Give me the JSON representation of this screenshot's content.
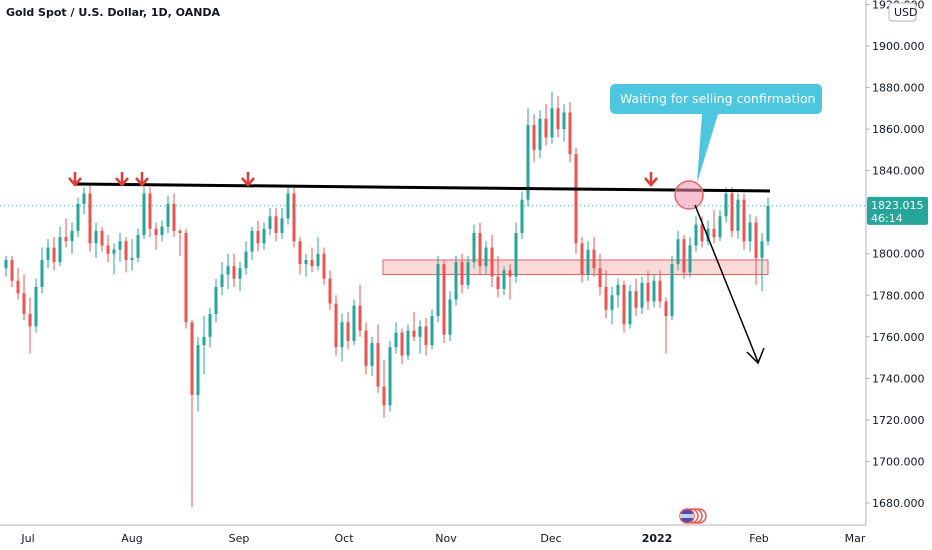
{
  "chart_data": {
    "type": "candlestick",
    "title": "Gold Spot / U.S. Dollar, 1D, OANDA",
    "currency_label": "USD",
    "ylim": [
      1670,
      1921
    ],
    "y_ticks": [
      {
        "value": 1680,
        "label": "1680.000"
      },
      {
        "value": 1700,
        "label": "1700.000"
      },
      {
        "value": 1720,
        "label": "1720.000"
      },
      {
        "value": 1740,
        "label": "1740.000"
      },
      {
        "value": 1760,
        "label": "1760.000"
      },
      {
        "value": 1780,
        "label": "1780.000"
      },
      {
        "value": 1800,
        "label": "1800.000"
      },
      {
        "value": 1820,
        "label": "1820.000"
      },
      {
        "value": 1840,
        "label": "1840.000"
      },
      {
        "value": 1860,
        "label": "1860.000"
      },
      {
        "value": 1880,
        "label": "1880.000"
      },
      {
        "value": 1900,
        "label": "1900.000"
      },
      {
        "value": 1920,
        "label": "1920.000"
      }
    ],
    "x_ticks": [
      {
        "label": "Jul",
        "bold": false
      },
      {
        "label": "Aug",
        "bold": false
      },
      {
        "label": "Sep",
        "bold": false
      },
      {
        "label": "Oct",
        "bold": false
      },
      {
        "label": "Nov",
        "bold": false
      },
      {
        "label": "Dec",
        "bold": false
      },
      {
        "label": "2022",
        "bold": true
      },
      {
        "label": "Feb",
        "bold": false
      },
      {
        "label": "Mar",
        "bold": false
      }
    ],
    "last_price": {
      "value": 1823.015,
      "label": "1823.015",
      "countdown": "46:14",
      "color": "#26a69a"
    },
    "colors": {
      "up": "#26a69a",
      "down": "#ef5350",
      "arrow_marker": "#e53935",
      "callout": "#4dc6e0"
    },
    "candles": [
      [
        1793,
        1799,
        1789,
        1797
      ],
      [
        1797,
        1799,
        1784,
        1787
      ],
      [
        1787,
        1793,
        1778,
        1781
      ],
      [
        1781,
        1790,
        1768,
        1771
      ],
      [
        1771,
        1779,
        1752,
        1765
      ],
      [
        1765,
        1788,
        1762,
        1784
      ],
      [
        1784,
        1803,
        1781,
        1797
      ],
      [
        1797,
        1807,
        1793,
        1803
      ],
      [
        1803,
        1808,
        1792,
        1796
      ],
      [
        1796,
        1813,
        1794,
        1808
      ],
      [
        1808,
        1817,
        1803,
        1806
      ],
      [
        1806,
        1815,
        1800,
        1811
      ],
      [
        1811,
        1827,
        1808,
        1824
      ],
      [
        1824,
        1832,
        1819,
        1829
      ],
      [
        1829,
        1833,
        1801,
        1805
      ],
      [
        1805,
        1815,
        1798,
        1811
      ],
      [
        1811,
        1813,
        1801,
        1804
      ],
      [
        1804,
        1809,
        1796,
        1800
      ],
      [
        1800,
        1805,
        1790,
        1802
      ],
      [
        1802,
        1810,
        1796,
        1806
      ],
      [
        1806,
        1808,
        1791,
        1797
      ],
      [
        1797,
        1807,
        1792,
        1798
      ],
      [
        1798,
        1812,
        1796,
        1809
      ],
      [
        1809,
        1832,
        1807,
        1829
      ],
      [
        1829,
        1832,
        1808,
        1812
      ],
      [
        1812,
        1815,
        1802,
        1809
      ],
      [
        1809,
        1816,
        1806,
        1813
      ],
      [
        1813,
        1828,
        1810,
        1824
      ],
      [
        1824,
        1829,
        1808,
        1811
      ],
      [
        1811,
        1812,
        1799,
        1810
      ],
      [
        1810,
        1812,
        1764,
        1767
      ],
      [
        1767,
        1768,
        1678,
        1732
      ],
      [
        1732,
        1760,
        1724,
        1756
      ],
      [
        1756,
        1770,
        1742,
        1760
      ],
      [
        1760,
        1774,
        1755,
        1771
      ],
      [
        1771,
        1788,
        1767,
        1784
      ],
      [
        1784,
        1796,
        1780,
        1790
      ],
      [
        1790,
        1800,
        1783,
        1794
      ],
      [
        1794,
        1800,
        1784,
        1788
      ],
      [
        1788,
        1796,
        1782,
        1793
      ],
      [
        1793,
        1806,
        1790,
        1801
      ],
      [
        1801,
        1813,
        1797,
        1811
      ],
      [
        1811,
        1816,
        1801,
        1805
      ],
      [
        1805,
        1815,
        1802,
        1812
      ],
      [
        1812,
        1822,
        1809,
        1818
      ],
      [
        1818,
        1822,
        1806,
        1810
      ],
      [
        1810,
        1822,
        1807,
        1817
      ],
      [
        1817,
        1832,
        1814,
        1829
      ],
      [
        1829,
        1832,
        1803,
        1806
      ],
      [
        1806,
        1808,
        1790,
        1795
      ],
      [
        1795,
        1800,
        1789,
        1797
      ],
      [
        1797,
        1803,
        1791,
        1794
      ],
      [
        1794,
        1808,
        1792,
        1800
      ],
      [
        1800,
        1803,
        1785,
        1788
      ],
      [
        1788,
        1792,
        1773,
        1776
      ],
      [
        1776,
        1780,
        1751,
        1755
      ],
      [
        1755,
        1771,
        1748,
        1767
      ],
      [
        1767,
        1772,
        1754,
        1758
      ],
      [
        1758,
        1778,
        1756,
        1775
      ],
      [
        1775,
        1785,
        1760,
        1763
      ],
      [
        1763,
        1767,
        1742,
        1746
      ],
      [
        1746,
        1760,
        1741,
        1757
      ],
      [
        1757,
        1766,
        1733,
        1736
      ],
      [
        1736,
        1749,
        1721,
        1727
      ],
      [
        1727,
        1758,
        1724,
        1755
      ],
      [
        1755,
        1767,
        1752,
        1762
      ],
      [
        1762,
        1764,
        1747,
        1751
      ],
      [
        1751,
        1766,
        1749,
        1763
      ],
      [
        1763,
        1772,
        1758,
        1760
      ],
      [
        1760,
        1768,
        1752,
        1765
      ],
      [
        1765,
        1769,
        1751,
        1756
      ],
      [
        1756,
        1773,
        1754,
        1770
      ],
      [
        1770,
        1799,
        1767,
        1795
      ],
      [
        1795,
        1797,
        1757,
        1761
      ],
      [
        1761,
        1782,
        1758,
        1778
      ],
      [
        1778,
        1799,
        1775,
        1796
      ],
      [
        1796,
        1800,
        1781,
        1785
      ],
      [
        1785,
        1799,
        1783,
        1796
      ],
      [
        1796,
        1814,
        1793,
        1810
      ],
      [
        1810,
        1815,
        1790,
        1794
      ],
      [
        1794,
        1806,
        1790,
        1803
      ],
      [
        1803,
        1809,
        1784,
        1789
      ],
      [
        1789,
        1799,
        1779,
        1783
      ],
      [
        1783,
        1794,
        1780,
        1792
      ],
      [
        1792,
        1795,
        1778,
        1789
      ],
      [
        1789,
        1815,
        1786,
        1810
      ],
      [
        1810,
        1830,
        1807,
        1826
      ],
      [
        1826,
        1870,
        1823,
        1862
      ],
      [
        1862,
        1867,
        1844,
        1850
      ],
      [
        1850,
        1869,
        1846,
        1865
      ],
      [
        1865,
        1872,
        1852,
        1856
      ],
      [
        1856,
        1878,
        1853,
        1870
      ],
      [
        1870,
        1876,
        1856,
        1860
      ],
      [
        1860,
        1872,
        1854,
        1868
      ],
      [
        1868,
        1873,
        1844,
        1848
      ],
      [
        1848,
        1851,
        1800,
        1805
      ],
      [
        1805,
        1808,
        1786,
        1790
      ],
      [
        1790,
        1806,
        1787,
        1802
      ],
      [
        1802,
        1808,
        1789,
        1793
      ],
      [
        1793,
        1800,
        1780,
        1784
      ],
      [
        1784,
        1792,
        1769,
        1773
      ],
      [
        1773,
        1784,
        1766,
        1780
      ],
      [
        1780,
        1788,
        1774,
        1785
      ],
      [
        1785,
        1787,
        1762,
        1766
      ],
      [
        1766,
        1785,
        1764,
        1782
      ],
      [
        1782,
        1788,
        1770,
        1774
      ],
      [
        1774,
        1789,
        1771,
        1786
      ],
      [
        1786,
        1792,
        1773,
        1777
      ],
      [
        1777,
        1790,
        1774,
        1787
      ],
      [
        1787,
        1792,
        1774,
        1777
      ],
      [
        1777,
        1779,
        1752,
        1770
      ],
      [
        1770,
        1799,
        1768,
        1795
      ],
      [
        1795,
        1811,
        1792,
        1807
      ],
      [
        1807,
        1809,
        1788,
        1791
      ],
      [
        1791,
        1808,
        1789,
        1804
      ],
      [
        1804,
        1818,
        1801,
        1814
      ],
      [
        1814,
        1818,
        1803,
        1806
      ],
      [
        1806,
        1816,
        1804,
        1812
      ],
      [
        1812,
        1821,
        1805,
        1808
      ],
      [
        1808,
        1821,
        1806,
        1818
      ],
      [
        1818,
        1832,
        1815,
        1829
      ],
      [
        1829,
        1832,
        1808,
        1811
      ],
      [
        1811,
        1829,
        1807,
        1826
      ],
      [
        1826,
        1829,
        1802,
        1806
      ],
      [
        1806,
        1819,
        1801,
        1815
      ],
      [
        1815,
        1818,
        1785,
        1798
      ],
      [
        1798,
        1810,
        1782,
        1806
      ],
      [
        1806,
        1827,
        1804,
        1823
      ]
    ]
  },
  "annotations": {
    "callout_text": "Waiting for selling confirmation"
  }
}
